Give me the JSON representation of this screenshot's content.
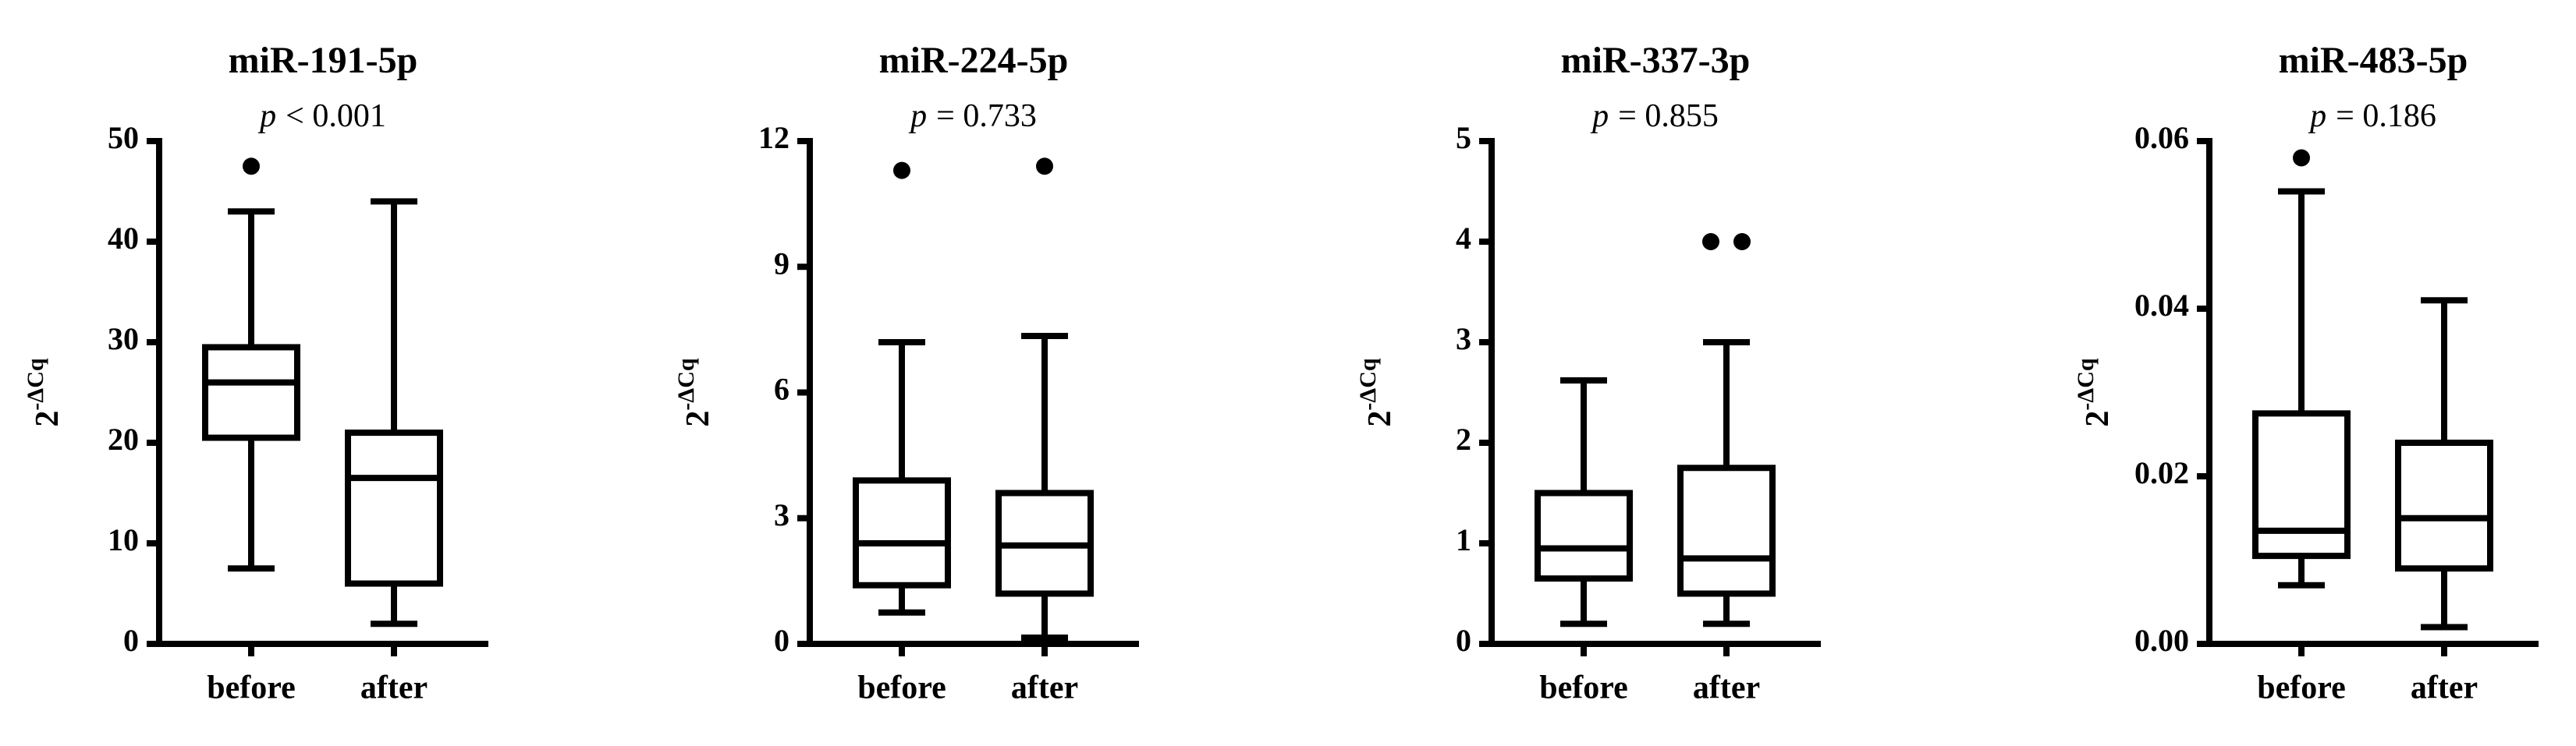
{
  "chart_data": [
    {
      "type": "box",
      "title": "miR-191-5p",
      "p_symbol": "p",
      "p_text": "< 0.001",
      "ylabel": "2",
      "ylabel_superscript": "-ΔCq",
      "categories": [
        "before",
        "after"
      ],
      "ylim": [
        0,
        50
      ],
      "yticks": [
        0,
        10,
        20,
        30,
        40,
        50
      ],
      "boxes": [
        {
          "min": 7.5,
          "q1": 20.5,
          "median": 26,
          "q3": 29.5,
          "max": 43,
          "outliers": [
            47.5
          ]
        },
        {
          "min": 2,
          "q1": 6,
          "median": 16.5,
          "q3": 21,
          "max": 44,
          "outliers": []
        }
      ]
    },
    {
      "type": "box",
      "title": "miR-224-5p",
      "p_symbol": "p",
      "p_text": "= 0.733",
      "ylabel": "2",
      "ylabel_superscript": "-ΔCq",
      "categories": [
        "before",
        "after"
      ],
      "ylim": [
        0,
        12
      ],
      "yticks": [
        0,
        3,
        6,
        9,
        12
      ],
      "boxes": [
        {
          "min": 0.75,
          "q1": 1.4,
          "median": 2.4,
          "q3": 3.9,
          "max": 7.2,
          "outliers": [
            11.3
          ]
        },
        {
          "min": 0.15,
          "q1": 1.2,
          "median": 2.35,
          "q3": 3.6,
          "max": 7.35,
          "outliers": [
            11.4
          ]
        }
      ]
    },
    {
      "type": "box",
      "title": "miR-337-3p",
      "p_symbol": "p",
      "p_text": "= 0.855",
      "ylabel": "2",
      "ylabel_superscript": "-ΔCq",
      "categories": [
        "before",
        "after"
      ],
      "ylim": [
        0,
        5
      ],
      "yticks": [
        0,
        1,
        2,
        3,
        4,
        5
      ],
      "boxes": [
        {
          "min": 0.2,
          "q1": 0.65,
          "median": 0.95,
          "q3": 1.5,
          "max": 2.62,
          "outliers": []
        },
        {
          "min": 0.2,
          "q1": 0.5,
          "median": 0.85,
          "q3": 1.75,
          "max": 3.0,
          "outliers": [
            4,
            4
          ]
        }
      ]
    },
    {
      "type": "box",
      "title": "miR-483-5p",
      "p_symbol": "p",
      "p_text": "= 0.186",
      "ylabel": "2",
      "ylabel_superscript": "-ΔCq",
      "categories": [
        "before",
        "after"
      ],
      "ylim": [
        0,
        0.06
      ],
      "yticks": [
        {
          "value": 0,
          "label": "0.00"
        },
        {
          "value": 0.02,
          "label": "0.02"
        },
        {
          "value": 0.04,
          "label": "0.04"
        },
        {
          "value": 0.06,
          "label": "0.06"
        }
      ],
      "boxes": [
        {
          "min": 0.007,
          "q1": 0.0105,
          "median": 0.0135,
          "q3": 0.0275,
          "max": 0.054,
          "outliers": [
            0.058
          ]
        },
        {
          "min": 0.002,
          "q1": 0.009,
          "median": 0.015,
          "q3": 0.024,
          "max": 0.041,
          "outliers": []
        }
      ]
    }
  ]
}
